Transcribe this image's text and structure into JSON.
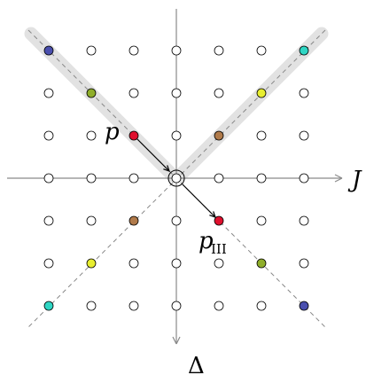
{
  "labels": {
    "horizontal_axis": "J",
    "vertical_axis": "Δ",
    "point_p": "p",
    "point_p_iii_main": "p",
    "point_p_iii_sub": "III"
  },
  "grid": {
    "columns": [
      -3,
      -2,
      -1,
      0,
      1,
      2,
      3
    ],
    "rows": [
      -3,
      -2,
      -1,
      0,
      1,
      2,
      3
    ]
  },
  "colored_points": [
    {
      "i": -3,
      "j": 3,
      "color": "#4a4fae"
    },
    {
      "i": -2,
      "j": 2,
      "color": "#8fae2a"
    },
    {
      "i": -1,
      "j": 1,
      "color": "#e0102e"
    },
    {
      "i": 1,
      "j": 1,
      "color": "#b07a4a"
    },
    {
      "i": 2,
      "j": 2,
      "color": "#e8ee30"
    },
    {
      "i": 3,
      "j": 3,
      "color": "#2fd6c4"
    },
    {
      "i": -1,
      "j": -1,
      "color": "#b07a4a"
    },
    {
      "i": -2,
      "j": -2,
      "color": "#e8ee30"
    },
    {
      "i": -3,
      "j": -3,
      "color": "#2fd6c4"
    },
    {
      "i": 1,
      "j": -1,
      "color": "#e0102e"
    },
    {
      "i": 2,
      "j": -2,
      "color": "#8fae2a"
    },
    {
      "i": 3,
      "j": -3,
      "color": "#4a4fae"
    }
  ],
  "colors": {
    "axis": "#8a8a8a",
    "band": "#e2e2e2",
    "dashed": "#888888",
    "arrow": "#000000"
  }
}
